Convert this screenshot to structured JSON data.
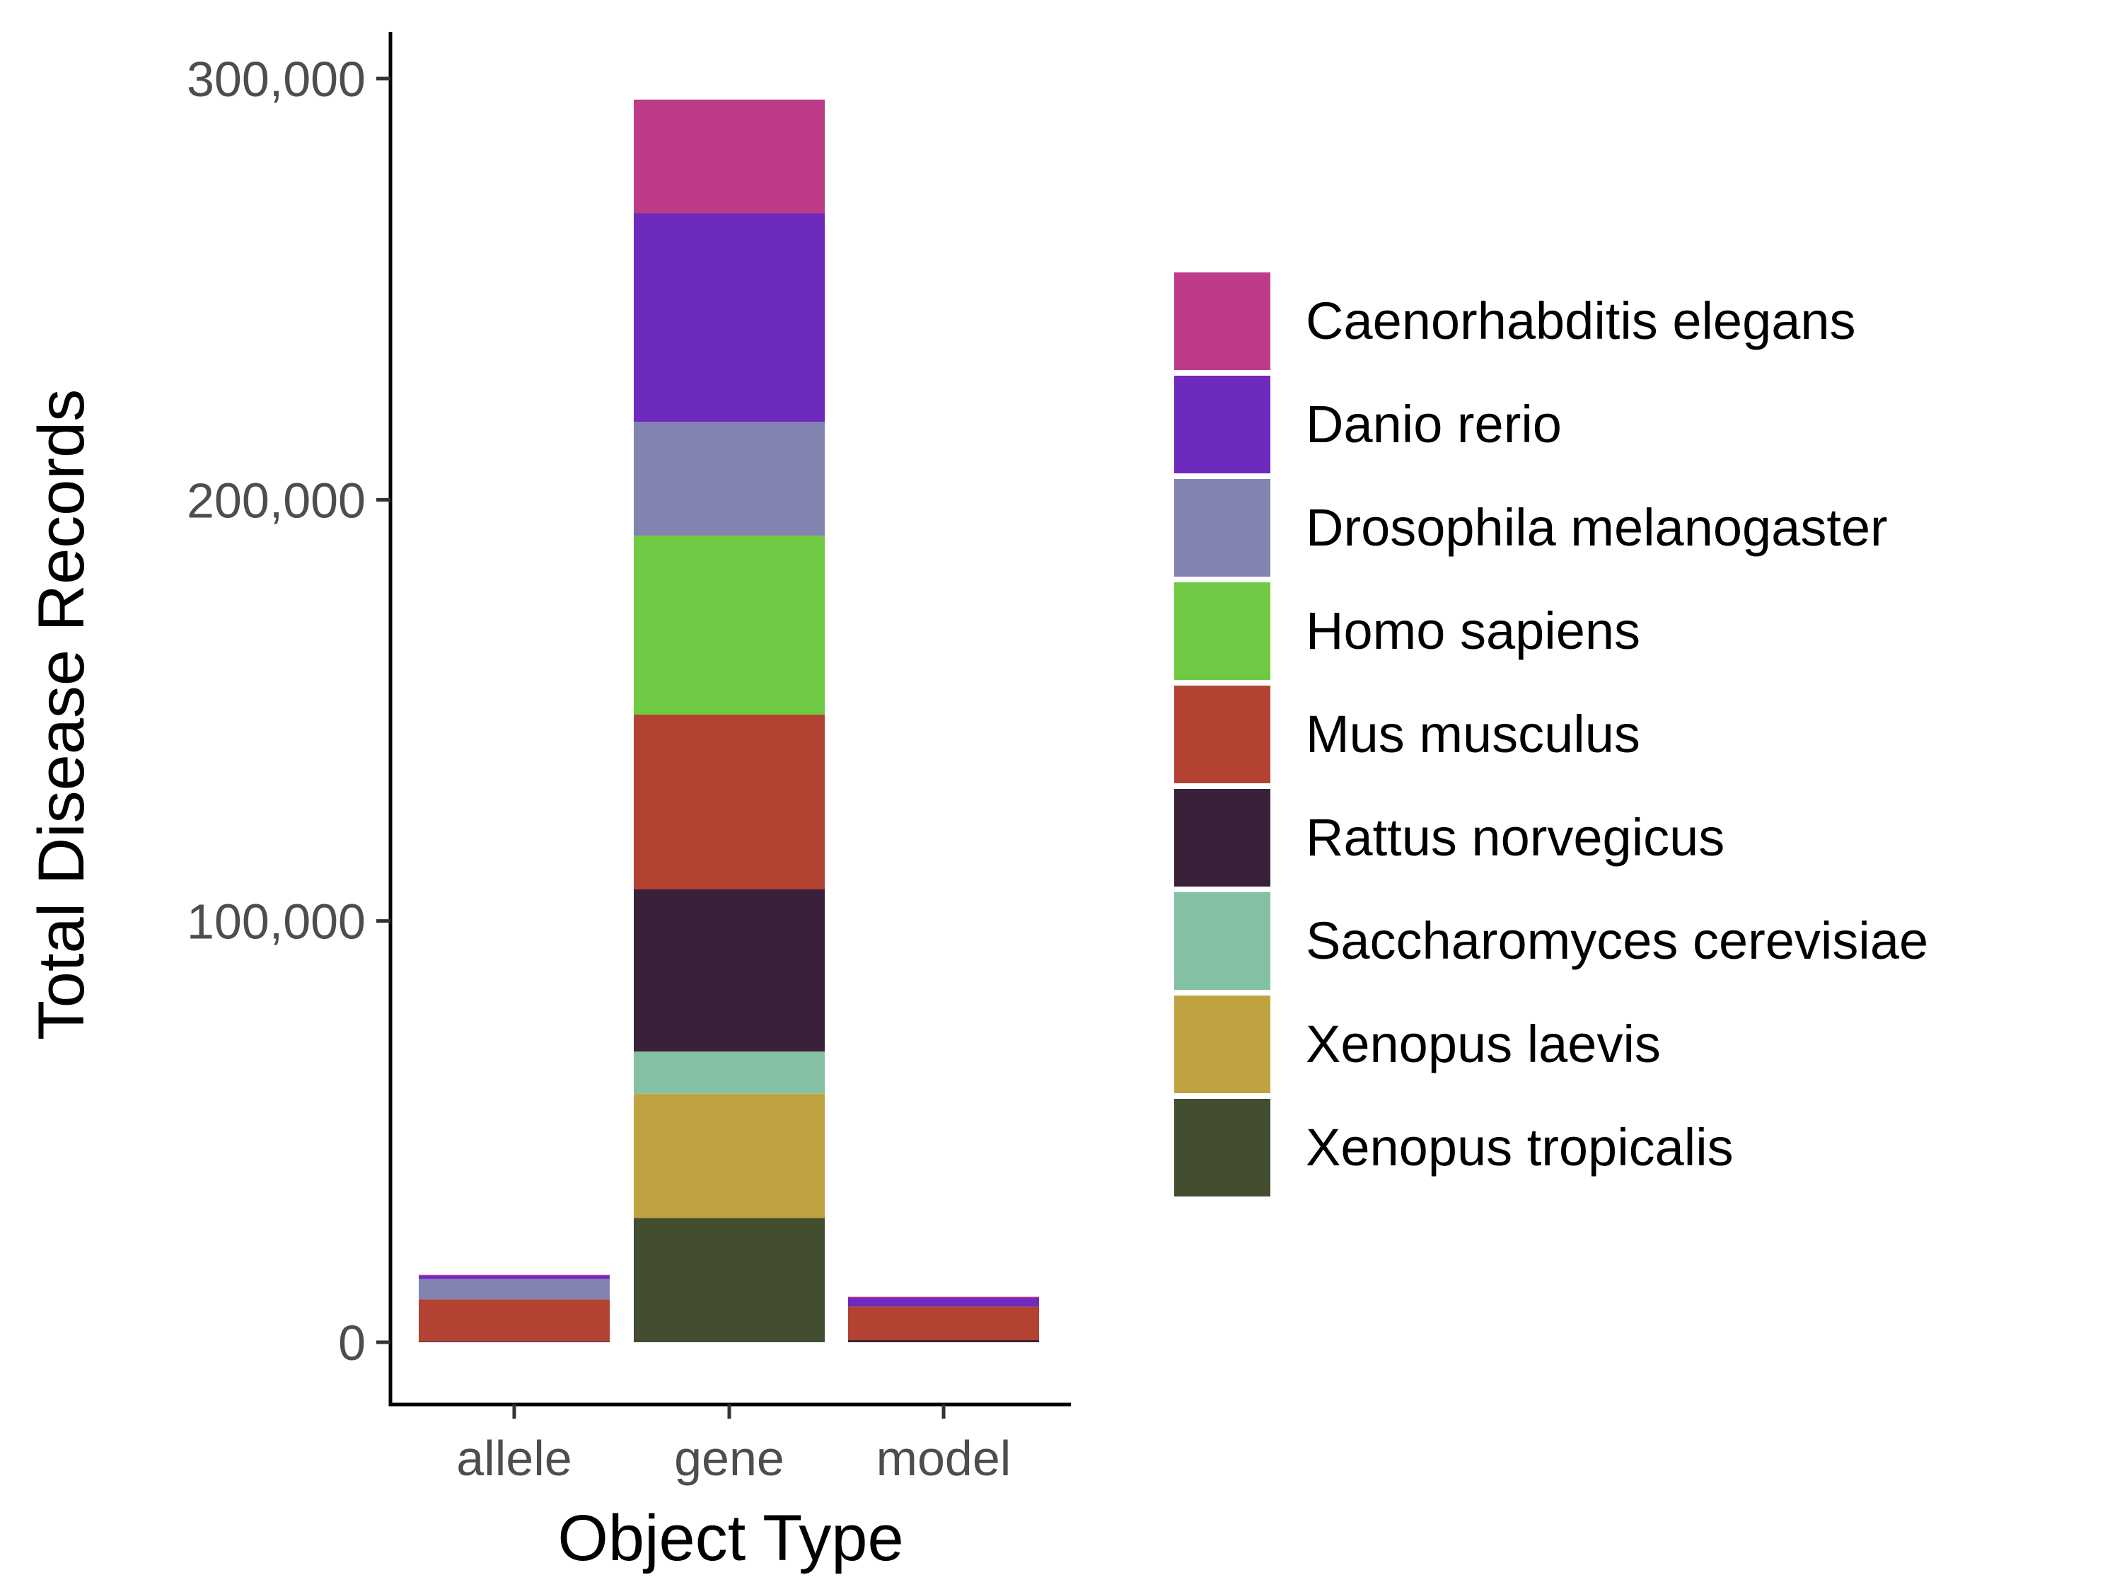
{
  "chart_data": {
    "type": "bar",
    "stacked": true,
    "xlabel": "Object Type",
    "ylabel": "Total Disease Records",
    "categories": [
      "allele",
      "gene",
      "model"
    ],
    "ylim": [
      -15000,
      310000
    ],
    "yticks": [
      0,
      100000,
      200000,
      300000
    ],
    "ytick_labels": [
      "0",
      "100,000",
      "200,000",
      "300,000"
    ],
    "legend_position": "right",
    "grid": false,
    "series": [
      {
        "name": "Xenopus tropicalis",
        "color": "#434d2f",
        "values": [
          0,
          29500,
          0
        ]
      },
      {
        "name": "Xenopus laevis",
        "color": "#c1a240",
        "values": [
          0,
          29500,
          0
        ]
      },
      {
        "name": "Saccharomyces cerevisiae",
        "color": "#83c1a2",
        "values": [
          0,
          10000,
          0
        ]
      },
      {
        "name": "Rattus norvegicus",
        "color": "#3a213a",
        "values": [
          200,
          38500,
          500
        ]
      },
      {
        "name": "Mus musculus",
        "color": "#b34233",
        "values": [
          10000,
          41500,
          8000
        ]
      },
      {
        "name": "Homo sapiens",
        "color": "#70c943",
        "values": [
          0,
          42500,
          0
        ]
      },
      {
        "name": "Drosophila melanogaster",
        "color": "#8383b2",
        "values": [
          4800,
          27000,
          0
        ]
      },
      {
        "name": "Danio rerio",
        "color": "#6e29bd",
        "values": [
          800,
          49500,
          2000
        ]
      },
      {
        "name": "Caenorhabditis elegans",
        "color": "#bd3b89",
        "values": [
          200,
          27000,
          300
        ]
      }
    ],
    "legend_order": [
      "Caenorhabditis elegans",
      "Danio rerio",
      "Drosophila melanogaster",
      "Homo sapiens",
      "Mus musculus",
      "Rattus norvegicus",
      "Saccharomyces cerevisiae",
      "Xenopus laevis",
      "Xenopus tropicalis"
    ]
  }
}
